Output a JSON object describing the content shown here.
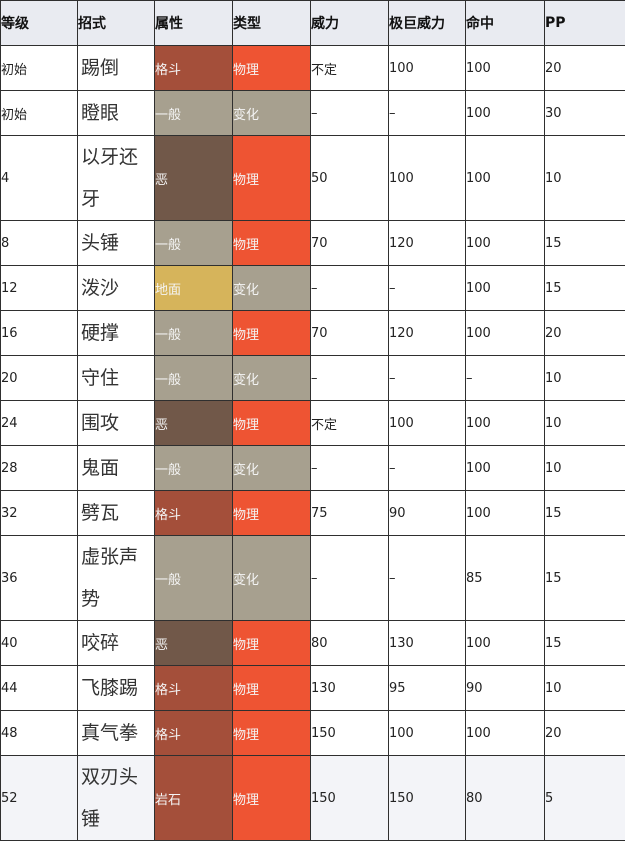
{
  "headers": [
    "等级",
    "招式",
    "属性",
    "类型",
    "威力",
    "极巨威力",
    "命中",
    "PP"
  ],
  "type_colors": {
    "格斗": "#a44f3a",
    "一般": "#a7a08f",
    "恶": "#715849",
    "地面": "#d6b45b",
    "岩石": "#a44f3a"
  },
  "category_colors": {
    "物理": "#ee5433",
    "变化": "#a7a08f"
  },
  "rows": [
    {
      "level": "初始",
      "move": "踢倒",
      "type": "格斗",
      "category": "物理",
      "power": "不定",
      "max_power": "100",
      "accuracy": "100",
      "pp": "20"
    },
    {
      "level": "初始",
      "move": "瞪眼",
      "type": "一般",
      "category": "变化",
      "power": "–",
      "max_power": "–",
      "accuracy": "100",
      "pp": "30"
    },
    {
      "level": "4",
      "move": "以牙还牙",
      "type": "恶",
      "category": "物理",
      "power": "50",
      "max_power": "100",
      "accuracy": "100",
      "pp": "10"
    },
    {
      "level": "8",
      "move": "头锤",
      "type": "一般",
      "category": "物理",
      "power": "70",
      "max_power": "120",
      "accuracy": "100",
      "pp": "15"
    },
    {
      "level": "12",
      "move": "泼沙",
      "type": "地面",
      "category": "变化",
      "power": "–",
      "max_power": "–",
      "accuracy": "100",
      "pp": "15"
    },
    {
      "level": "16",
      "move": "硬撑",
      "type": "一般",
      "category": "物理",
      "power": "70",
      "max_power": "120",
      "accuracy": "100",
      "pp": "20"
    },
    {
      "level": "20",
      "move": "守住",
      "type": "一般",
      "category": "变化",
      "power": "–",
      "max_power": "–",
      "accuracy": "–",
      "pp": "10"
    },
    {
      "level": "24",
      "move": "围攻",
      "type": "恶",
      "category": "物理",
      "power": "不定",
      "max_power": "100",
      "accuracy": "100",
      "pp": "10"
    },
    {
      "level": "28",
      "move": "鬼面",
      "type": "一般",
      "category": "变化",
      "power": "–",
      "max_power": "–",
      "accuracy": "100",
      "pp": "10"
    },
    {
      "level": "32",
      "move": "劈瓦",
      "type": "格斗",
      "category": "物理",
      "power": "75",
      "max_power": "90",
      "accuracy": "100",
      "pp": "15"
    },
    {
      "level": "36",
      "move": "虚张声势",
      "type": "一般",
      "category": "变化",
      "power": "–",
      "max_power": "–",
      "accuracy": "85",
      "pp": "15"
    },
    {
      "level": "40",
      "move": "咬碎",
      "type": "恶",
      "category": "物理",
      "power": "80",
      "max_power": "130",
      "accuracy": "100",
      "pp": "15"
    },
    {
      "level": "44",
      "move": "飞膝踢",
      "type": "格斗",
      "category": "物理",
      "power": "130",
      "max_power": "95",
      "accuracy": "90",
      "pp": "10"
    },
    {
      "level": "48",
      "move": "真气拳",
      "type": "格斗",
      "category": "物理",
      "power": "150",
      "max_power": "100",
      "accuracy": "100",
      "pp": "20"
    },
    {
      "level": "52",
      "move": "双刃头锤",
      "type": "岩石",
      "category": "物理",
      "power": "150",
      "max_power": "150",
      "accuracy": "80",
      "pp": "5"
    }
  ]
}
